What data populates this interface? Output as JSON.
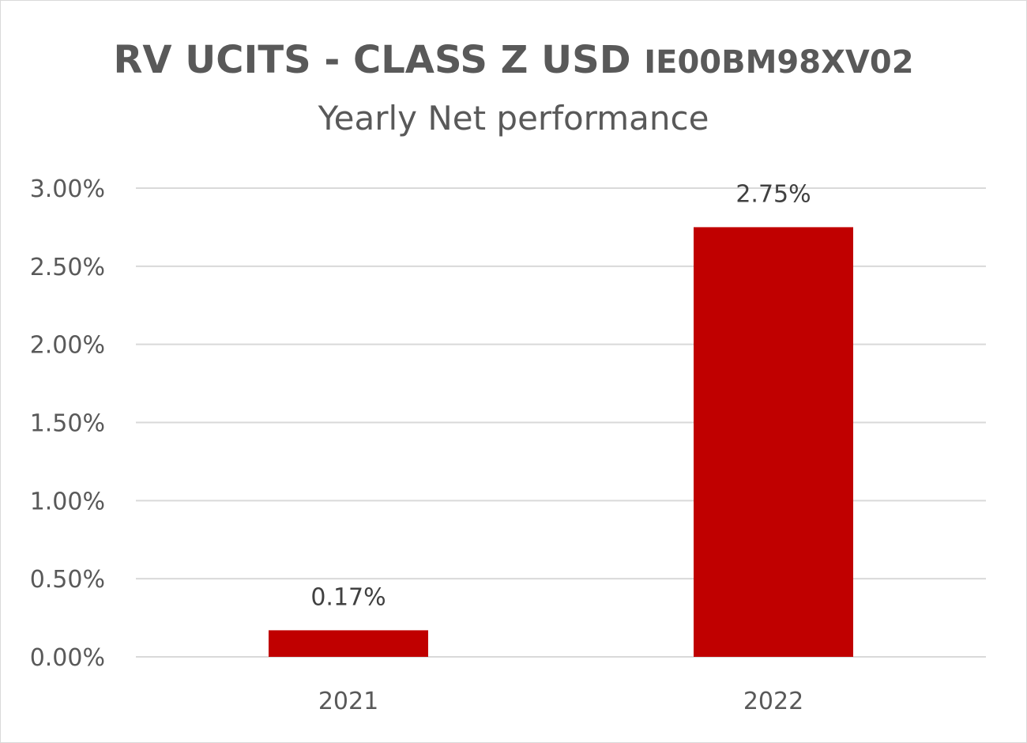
{
  "chart_data": {
    "type": "bar",
    "title": "RV UCITS - CLASS Z USD",
    "title_code": "IE00BM98XV02",
    "subtitle": "Yearly Net performance",
    "categories": [
      "2021",
      "2022"
    ],
    "values": [
      0.17,
      2.75
    ],
    "data_labels": [
      "0.17%",
      "2.75%"
    ],
    "ylim": [
      0,
      3
    ],
    "yticks": [
      0,
      0.5,
      1,
      1.5,
      2,
      2.5,
      3
    ],
    "ytick_labels": [
      "0.00%",
      "0.50%",
      "1.00%",
      "1.50%",
      "2.00%",
      "2.50%",
      "3.00%"
    ],
    "grid": true,
    "bar_color": "#c00000",
    "gridline_color": "#d9d9d9",
    "text_color": "#595959"
  }
}
